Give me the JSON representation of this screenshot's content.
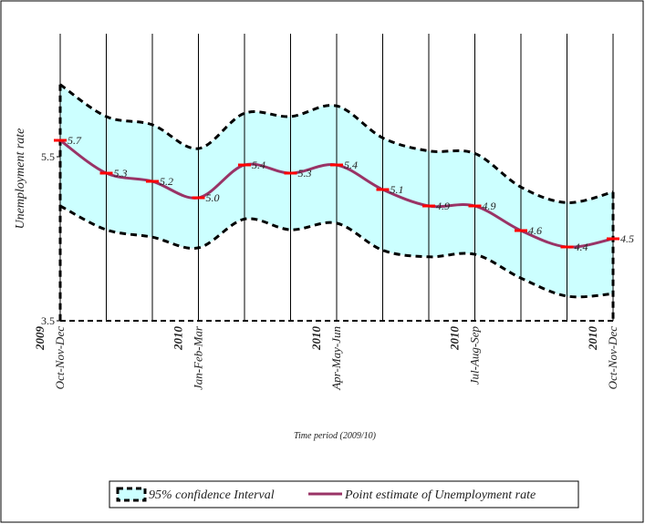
{
  "chart_data": {
    "type": "line-band",
    "x_label": "Time period (2009/10)",
    "y_label": "Unemployment rate",
    "categories": [
      "Oct-Nov-Dec",
      null,
      null,
      "Jan-Feb-Mar",
      null,
      null,
      "Apr-May-Jun",
      null,
      null,
      "Jul-Aug-Sep",
      null,
      null,
      "Oct-Nov-Dec"
    ],
    "category_years": [
      "2009",
      null,
      null,
      "2010",
      null,
      null,
      "2010",
      null,
      null,
      "2010",
      null,
      null,
      "2010"
    ],
    "series": [
      {
        "name": "95% confidence Interval",
        "color": "#ccffff",
        "upper": [
          6.38,
          5.99,
          5.89,
          5.6,
          6.03,
          5.99,
          6.12,
          5.73,
          5.57,
          5.54,
          5.13,
          4.94,
          5.07
        ],
        "lower": [
          4.9,
          4.61,
          4.52,
          4.39,
          4.74,
          4.61,
          4.69,
          4.36,
          4.28,
          4.31,
          4.02,
          3.8,
          3.83
        ]
      },
      {
        "name": "Point estimate of Unemployment rate",
        "color": "#993366",
        "marker_color": "#ff0000",
        "values": [
          5.7,
          5.3,
          5.2,
          5.0,
          5.4,
          5.3,
          5.4,
          5.1,
          4.9,
          4.9,
          4.6,
          4.4,
          4.5
        ],
        "value_labels": [
          "5.7",
          "5.3",
          "5.2",
          "5.0",
          "5.4",
          "5.3",
          "5.4",
          "5.1",
          "4.9",
          "4.9",
          "4.6",
          "4.4",
          "4.5"
        ]
      }
    ],
    "ylim": [
      3.5,
      7
    ],
    "yticks": [
      3.5,
      5.5
    ],
    "grid": true
  }
}
